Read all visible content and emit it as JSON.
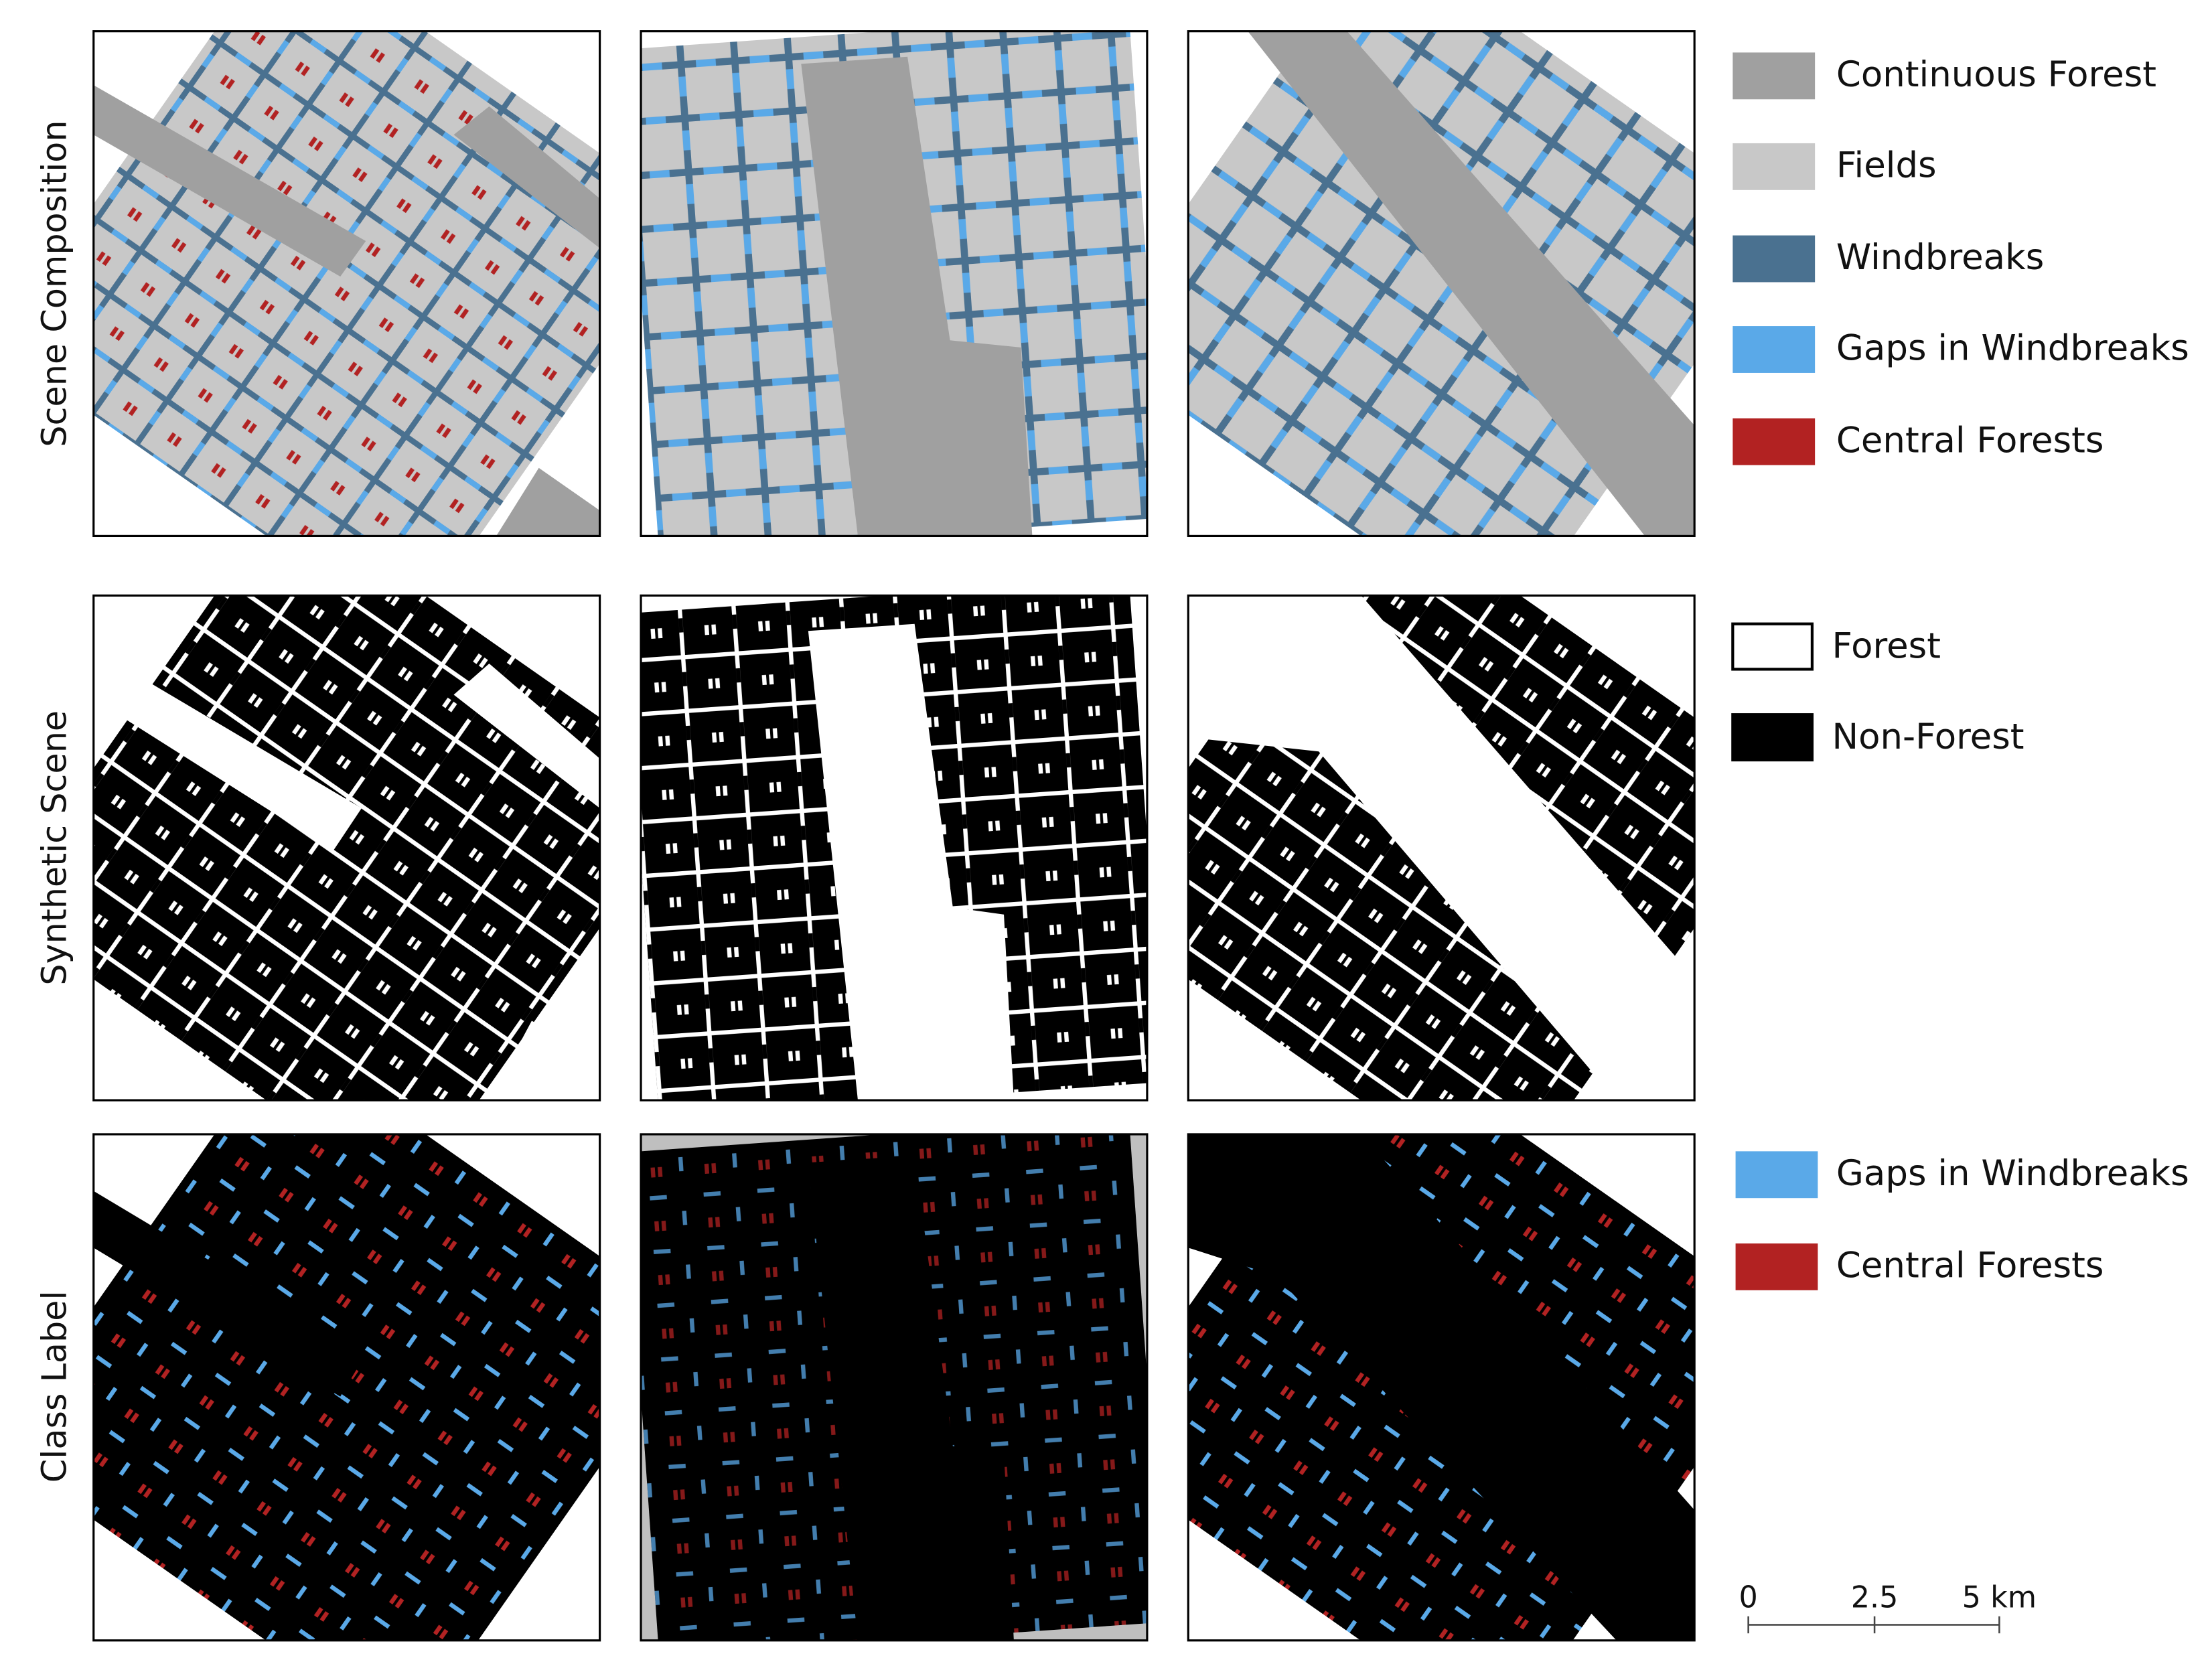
{
  "row_labels": [
    "Scene Composition",
    "Synthetic Scene",
    "Class Label"
  ],
  "legend_composition": [
    "Continuous Forest",
    "Fields",
    "Windbreaks",
    "Gaps in Windbreaks",
    "Central Forests"
  ],
  "legend_scene": [
    "Forest",
    "Non-Forest"
  ],
  "legend_label": [
    "Gaps in Windbreaks",
    "Central Forests"
  ],
  "scale_bar": {
    "labels": [
      "0",
      "2.5",
      "5 km"
    ]
  }
}
